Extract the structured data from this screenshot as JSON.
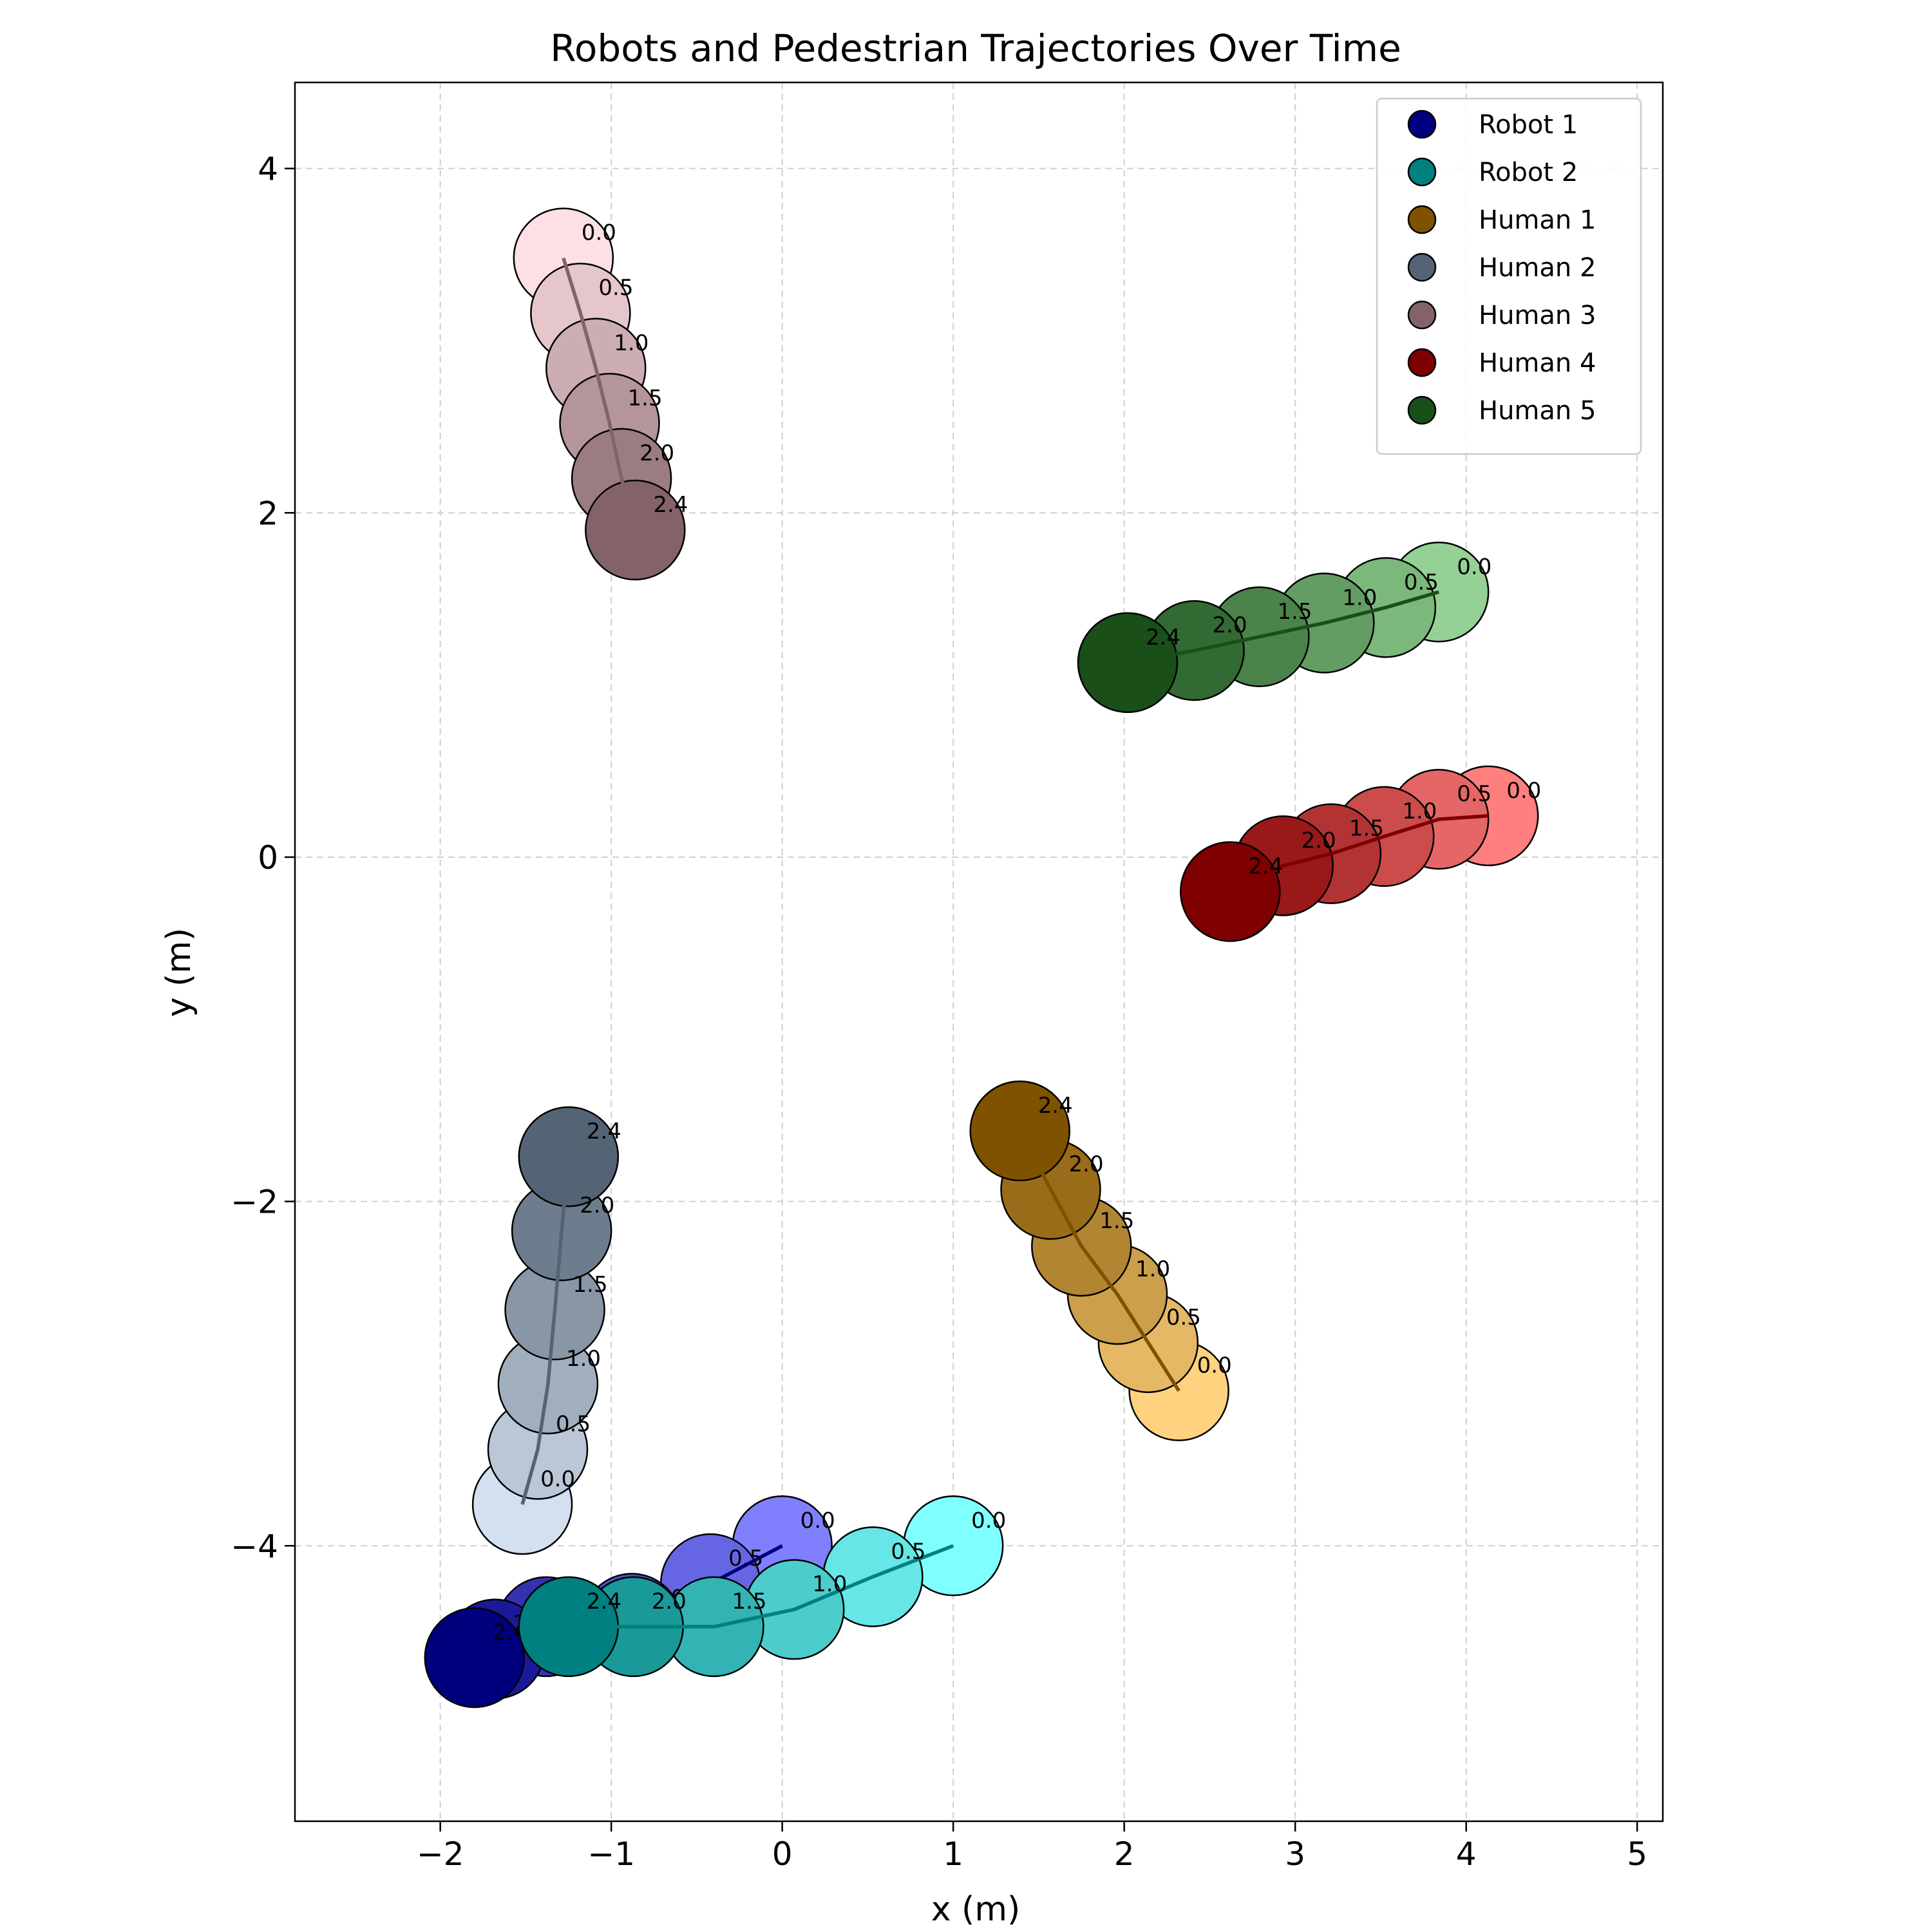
{
  "chart_data": {
    "type": "scatter",
    "title": "Robots and Pedestrian Trajectories Over Time",
    "xlabel": "x (m)",
    "ylabel": "y (m)",
    "xlim": [
      -2.85,
      5.15
    ],
    "ylim": [
      -5.6,
      4.5
    ],
    "xticks": [
      -2,
      -1,
      0,
      1,
      2,
      3,
      4,
      5
    ],
    "xtick_labels": [
      "−2",
      "−1",
      "0",
      "1",
      "2",
      "3",
      "4",
      "5"
    ],
    "yticks": [
      -4,
      -2,
      0,
      2,
      4
    ],
    "ytick_labels": [
      "−4",
      "−2",
      "0",
      "2",
      "4"
    ],
    "grid": true,
    "legend_position": "top-right",
    "series": [
      {
        "name": "Robot 1",
        "color": "#00007f",
        "start_color": "#8080ff",
        "times": [
          0.0,
          0.5,
          1.0,
          1.5,
          2.0,
          2.4
        ],
        "time_labels": [
          "0.0",
          "0.5",
          "1.0",
          "1.5",
          "2.0",
          "2.4"
        ],
        "x": [
          0.0,
          -0.42,
          -0.88,
          -1.38,
          -1.68,
          -1.8
        ],
        "y": [
          -4.0,
          -4.22,
          -4.45,
          -4.47,
          -4.6,
          -4.65
        ]
      },
      {
        "name": "Robot 2",
        "color": "#008080",
        "start_color": "#80ffff",
        "times": [
          0.0,
          0.5,
          1.0,
          1.5,
          2.0,
          2.4
        ],
        "time_labels": [
          "0.0",
          "0.5",
          "1.0",
          "1.5",
          "2.0",
          "2.4"
        ],
        "x": [
          1.0,
          0.53,
          0.07,
          -0.4,
          -0.87,
          -1.25
        ],
        "y": [
          -4.0,
          -4.18,
          -4.37,
          -4.47,
          -4.47,
          -4.47
        ]
      },
      {
        "name": "Human 1",
        "color": "#7f5200",
        "start_color": "#ffd27f",
        "times": [
          0.0,
          0.5,
          1.0,
          1.5,
          2.0,
          2.4
        ],
        "time_labels": [
          "0.0",
          "0.5",
          "1.0",
          "1.5",
          "2.0",
          "2.4"
        ],
        "x": [
          2.32,
          2.14,
          1.96,
          1.75,
          1.57,
          1.39
        ],
        "y": [
          -3.1,
          -2.82,
          -2.54,
          -2.26,
          -1.93,
          -1.59
        ]
      },
      {
        "name": "Human 2",
        "color": "#556474",
        "start_color": "#d4e0f0",
        "times": [
          0.0,
          0.5,
          1.0,
          1.5,
          2.0,
          2.4
        ],
        "time_labels": [
          "0.0",
          "0.5",
          "1.0",
          "1.5",
          "2.0",
          "2.4"
        ],
        "x": [
          -1.52,
          -1.43,
          -1.37,
          -1.33,
          -1.29,
          -1.25
        ],
        "y": [
          -3.76,
          -3.44,
          -3.06,
          -2.63,
          -2.17,
          -1.74
        ]
      },
      {
        "name": "Human 3",
        "color": "#836368",
        "start_color": "#fde0e4",
        "times": [
          0.0,
          0.5,
          1.0,
          1.5,
          2.0,
          2.4
        ],
        "time_labels": [
          "0.0",
          "0.5",
          "1.0",
          "1.5",
          "2.0",
          "2.4"
        ],
        "x": [
          -1.28,
          -1.18,
          -1.09,
          -1.01,
          -0.94,
          -0.86
        ],
        "y": [
          3.48,
          3.16,
          2.84,
          2.52,
          2.2,
          1.9
        ]
      },
      {
        "name": "Human 4",
        "color": "#7f0000",
        "start_color": "#ff7f7f",
        "times": [
          0.0,
          0.5,
          1.0,
          1.5,
          2.0,
          2.4
        ],
        "time_labels": [
          "0.0",
          "0.5",
          "1.0",
          "1.5",
          "2.0",
          "2.4"
        ],
        "x": [
          4.13,
          3.84,
          3.52,
          3.21,
          2.93,
          2.62
        ],
        "y": [
          0.24,
          0.22,
          0.12,
          0.02,
          -0.05,
          -0.2
        ]
      },
      {
        "name": "Human 5",
        "color": "#1a4f1a",
        "start_color": "#95d195",
        "times": [
          0.0,
          0.5,
          1.0,
          1.5,
          2.0,
          2.4
        ],
        "time_labels": [
          "0.0",
          "0.5",
          "1.0",
          "1.5",
          "2.0",
          "2.4"
        ],
        "x": [
          3.84,
          3.53,
          3.17,
          2.79,
          2.41,
          2.02
        ],
        "y": [
          1.54,
          1.45,
          1.36,
          1.28,
          1.2,
          1.13
        ]
      }
    ]
  }
}
